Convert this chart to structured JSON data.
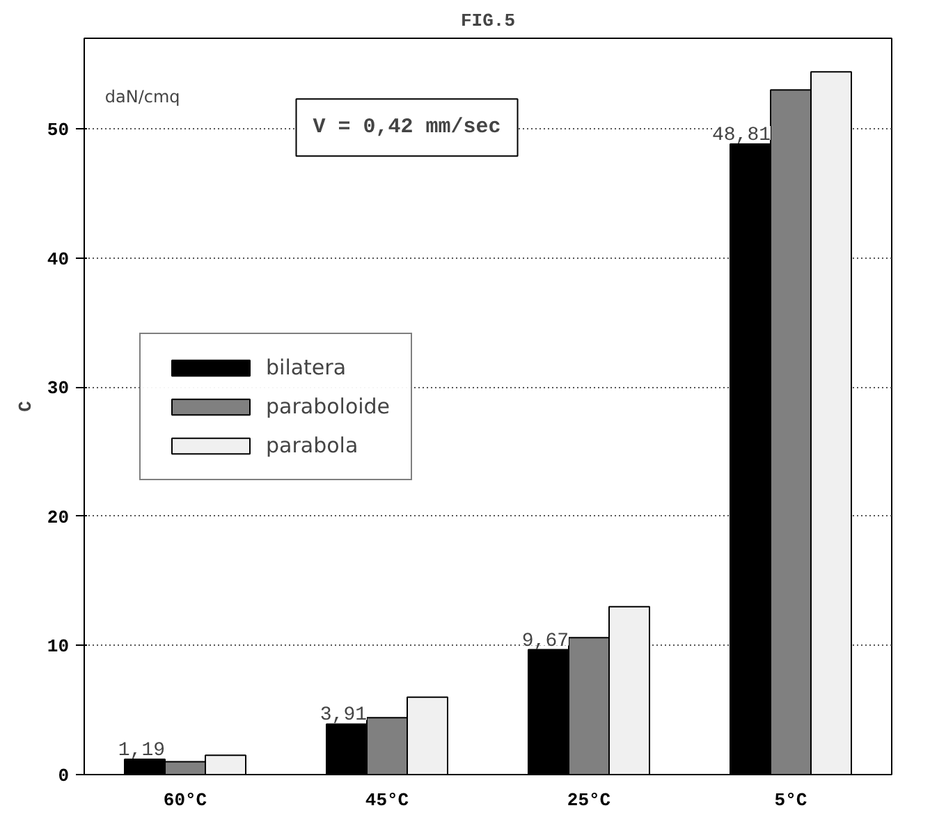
{
  "chart_data": {
    "type": "bar",
    "title": "FIG.5",
    "ylabel": "C",
    "annotations": [
      "daN/cmq",
      "V = 0,42 mm/sec"
    ],
    "categories": [
      "60°C",
      "45°C",
      "25°C",
      "5°C"
    ],
    "series": [
      {
        "name": "bilatera",
        "color": "#000000",
        "values": [
          1.19,
          3.91,
          9.67,
          48.81
        ],
        "value_labels": [
          "1,19",
          "3,91",
          "9,67",
          "48,81"
        ]
      },
      {
        "name": "paraboloide",
        "color": "#808080",
        "values": [
          1.0,
          4.4,
          10.6,
          53.0
        ]
      },
      {
        "name": "parabola",
        "color": "#f0f0f0",
        "values": [
          1.5,
          6.0,
          13.0,
          54.4
        ]
      }
    ],
    "ylim": [
      0,
      57
    ],
    "yticks": [
      0,
      10,
      20,
      30,
      40,
      50
    ],
    "grid": "y",
    "legend": "left"
  }
}
